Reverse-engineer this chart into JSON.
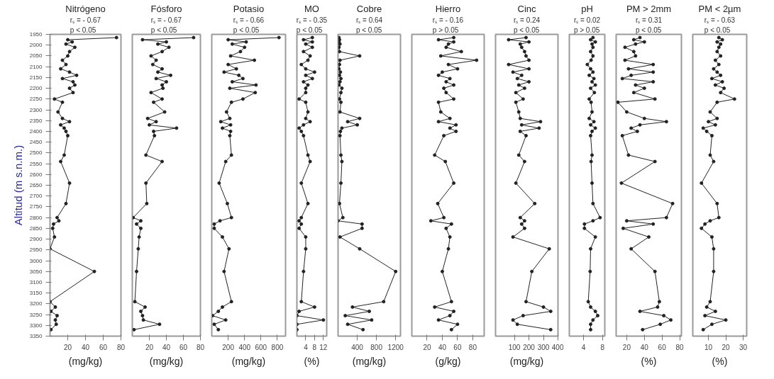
{
  "chart_data": [
    {
      "type": "line",
      "title": "Nitrógeno",
      "subtitle": "rₛ = - 0.67\np < 0.05",
      "xlabel": "(mg/kg)",
      "ylabel": "Altitud (m s.n.m.)",
      "orientation": "horizontal",
      "marker": "circle",
      "color": "#222222",
      "xlim": [
        0,
        80
      ],
      "xticks": [
        20,
        40,
        60,
        80
      ],
      "ylim": [
        3350,
        1950
      ],
      "yticks": [
        1950,
        2000,
        2050,
        2100,
        2150,
        2200,
        2250,
        2300,
        2350,
        2400,
        2450,
        2500,
        2550,
        2600,
        2650,
        2700,
        2750,
        2800,
        2850,
        2900,
        2950,
        3000,
        3050,
        3100,
        3150,
        3200,
        3250,
        3300,
        3350
      ],
      "x": [
        1965,
        1975,
        1985,
        1995,
        2010,
        2030,
        2050,
        2070,
        2090,
        2110,
        2125,
        2140,
        2155,
        2170,
        2185,
        2200,
        2220,
        2250,
        2265,
        2310,
        2340,
        2355,
        2370,
        2385,
        2400,
        2420,
        2510,
        2540,
        2640,
        2735,
        2800,
        2815,
        2830,
        2850,
        2890,
        2945,
        3050,
        3190,
        3215,
        3235,
        3255,
        3275,
        3295,
        3320
      ],
      "values": [
        75,
        20,
        25,
        18,
        28,
        22,
        20,
        14,
        18,
        12,
        22,
        30,
        14,
        26,
        28,
        22,
        26,
        5,
        14,
        9,
        14,
        22,
        12,
        16,
        18,
        20,
        16,
        12,
        22,
        18,
        8,
        10,
        4,
        3,
        5,
        0,
        50,
        0,
        6,
        1,
        8,
        6,
        7,
        1
      ]
    },
    {
      "type": "line",
      "title": "Fósforo",
      "subtitle": "rₛ = - 0.67\np < 0.05",
      "xlabel": "(mg/kg)",
      "orientation": "horizontal",
      "marker": "circle",
      "color": "#222222",
      "xlim": [
        0,
        80
      ],
      "xticks": [
        20,
        40,
        60,
        80
      ],
      "ylim": [
        3350,
        1950
      ],
      "tick_labels": "x",
      "x": [
        1965,
        1975,
        1985,
        1995,
        2010,
        2030,
        2050,
        2070,
        2090,
        2110,
        2125,
        2140,
        2155,
        2170,
        2185,
        2200,
        2220,
        2250,
        2265,
        2310,
        2340,
        2355,
        2370,
        2385,
        2400,
        2420,
        2510,
        2540,
        2640,
        2735,
        2800,
        2815,
        2830,
        2850,
        2890,
        2945,
        3050,
        3190,
        3215,
        3235,
        3255,
        3275,
        3295,
        3320
      ],
      "values": [
        72,
        12,
        40,
        30,
        43,
        35,
        22,
        28,
        24,
        35,
        30,
        45,
        28,
        40,
        35,
        36,
        22,
        35,
        25,
        38,
        18,
        28,
        20,
        52,
        25,
        26,
        16,
        35,
        16,
        17,
        1,
        10,
        5,
        10,
        8,
        7,
        5,
        3,
        15,
        10,
        12,
        13,
        32,
        2
      ]
    },
    {
      "type": "line",
      "title": "Potasio",
      "subtitle": "rₛ = - 0.66\np < 0.05",
      "xlabel": "(mg/kg)",
      "orientation": "horizontal",
      "marker": "circle",
      "color": "#222222",
      "xlim": [
        0,
        900
      ],
      "xticks": [
        200,
        400,
        600,
        800
      ],
      "ylim": [
        3350,
        1950
      ],
      "tick_labels": "x",
      "x": [
        1965,
        1975,
        1985,
        1995,
        2010,
        2030,
        2050,
        2070,
        2090,
        2110,
        2125,
        2140,
        2155,
        2170,
        2185,
        2200,
        2220,
        2250,
        2265,
        2310,
        2340,
        2355,
        2370,
        2385,
        2400,
        2420,
        2510,
        2540,
        2640,
        2735,
        2800,
        2815,
        2830,
        2850,
        2890,
        2945,
        3050,
        3190,
        3215,
        3235,
        3255,
        3275,
        3295,
        3320
      ],
      "values": [
        820,
        200,
        420,
        250,
        400,
        350,
        230,
        520,
        200,
        300,
        150,
        330,
        380,
        250,
        540,
        220,
        530,
        380,
        240,
        180,
        220,
        110,
        230,
        130,
        230,
        220,
        240,
        170,
        90,
        190,
        240,
        100,
        30,
        30,
        130,
        210,
        150,
        240,
        130,
        80,
        10,
        170,
        30,
        80
      ]
    },
    {
      "type": "line",
      "title": "MO",
      "subtitle": "rₛ = - 0.35\np < 0.05",
      "xlabel": "(%)",
      "orientation": "horizontal",
      "marker": "circle",
      "color": "#222222",
      "xlim": [
        0,
        13.5
      ],
      "xticks": [
        4,
        8,
        12
      ],
      "ylim": [
        3350,
        1950
      ],
      "tick_labels": "x",
      "x": [
        1965,
        1975,
        1985,
        1995,
        2010,
        2030,
        2050,
        2070,
        2090,
        2110,
        2125,
        2140,
        2155,
        2170,
        2185,
        2200,
        2220,
        2250,
        2265,
        2310,
        2340,
        2355,
        2370,
        2385,
        2400,
        2420,
        2510,
        2540,
        2640,
        2735,
        2800,
        2815,
        2830,
        2850,
        2890,
        2945,
        3050,
        3190,
        3215,
        3235,
        3255,
        3275,
        3295,
        3320
      ],
      "values": [
        7,
        3,
        7,
        4,
        7,
        3,
        6,
        5,
        2,
        4,
        8,
        4,
        7,
        3,
        5,
        4,
        4,
        1,
        4,
        5,
        4,
        6,
        3,
        1,
        2,
        3,
        5,
        6,
        2,
        5,
        2,
        1,
        2,
        1,
        4,
        4,
        3,
        2,
        8,
        1,
        0,
        12,
        0,
        0
      ]
    },
    {
      "type": "line",
      "title": "Cobre",
      "subtitle": "rₛ = 0.64\np < 0.05",
      "xlabel": "(mg/kg)",
      "orientation": "horizontal",
      "marker": "circle",
      "color": "#222222",
      "xlim": [
        0,
        1300
      ],
      "xticks": [
        400,
        800,
        1200
      ],
      "ylim": [
        3350,
        1950
      ],
      "tick_labels": "x",
      "x": [
        1965,
        1975,
        1985,
        1995,
        2010,
        2030,
        2050,
        2070,
        2090,
        2110,
        2125,
        2140,
        2155,
        2170,
        2185,
        2200,
        2220,
        2250,
        2265,
        2310,
        2340,
        2355,
        2370,
        2385,
        2400,
        2420,
        2510,
        2540,
        2640,
        2735,
        2800,
        2815,
        2830,
        2850,
        2890,
        2945,
        3050,
        3190,
        3215,
        3235,
        3255,
        3275,
        3295,
        3320
      ],
      "values": [
        20,
        30,
        20,
        40,
        20,
        30,
        450,
        40,
        30,
        20,
        50,
        30,
        60,
        40,
        20,
        80,
        60,
        30,
        60,
        40,
        450,
        200,
        400,
        80,
        50,
        40,
        60,
        80,
        60,
        30,
        100,
        0,
        500,
        500,
        40,
        450,
        1200,
        950,
        300,
        650,
        150,
        700,
        200,
        520
      ]
    },
    {
      "type": "line",
      "title": "Hierro",
      "subtitle": "rₛ = - 0.16\np > 0.05",
      "xlabel": "(g/kg)",
      "orientation": "horizontal",
      "marker": "circle",
      "color": "#222222",
      "xlim": [
        0,
        95
      ],
      "xticks": [
        20,
        40,
        60,
        80
      ],
      "ylim": [
        3350,
        1950
      ],
      "tick_labels": "x",
      "x": [
        1965,
        1975,
        1985,
        1995,
        2010,
        2030,
        2050,
        2070,
        2090,
        2110,
        2125,
        2140,
        2155,
        2170,
        2185,
        2200,
        2220,
        2250,
        2265,
        2310,
        2340,
        2355,
        2370,
        2385,
        2400,
        2420,
        2510,
        2540,
        2640,
        2735,
        2800,
        2815,
        2830,
        2850,
        2890,
        2945,
        3050,
        3190,
        3215,
        3235,
        3255,
        3275,
        3295,
        3320
      ],
      "values": [
        55,
        35,
        55,
        48,
        45,
        65,
        38,
        85,
        48,
        60,
        40,
        35,
        50,
        45,
        55,
        42,
        45,
        55,
        35,
        38,
        50,
        35,
        58,
        50,
        58,
        42,
        30,
        44,
        55,
        34,
        42,
        25,
        52,
        45,
        50,
        48,
        40,
        52,
        30,
        55,
        50,
        35,
        60,
        52
      ]
    },
    {
      "type": "line",
      "title": "Cinc",
      "subtitle": "rₛ = 0.24\np < 0.05",
      "xlabel": "(mg/kg)",
      "orientation": "horizontal",
      "marker": "circle",
      "color": "#222222",
      "xlim": [
        -30,
        400
      ],
      "xticks": [
        100,
        200,
        300,
        400
      ],
      "ylim": [
        3350,
        1950
      ],
      "tick_labels": "x",
      "x": [
        1965,
        1975,
        1985,
        1995,
        2010,
        2030,
        2050,
        2070,
        2090,
        2110,
        2125,
        2140,
        2155,
        2170,
        2185,
        2200,
        2220,
        2250,
        2265,
        2310,
        2340,
        2355,
        2370,
        2385,
        2400,
        2420,
        2510,
        2540,
        2640,
        2735,
        2800,
        2815,
        2830,
        2850,
        2890,
        2945,
        3050,
        3190,
        3215,
        3235,
        3255,
        3275,
        3295,
        3320
      ],
      "values": [
        180,
        60,
        200,
        140,
        150,
        170,
        180,
        200,
        60,
        200,
        90,
        150,
        120,
        200,
        130,
        170,
        110,
        160,
        110,
        130,
        140,
        280,
        150,
        270,
        140,
        180,
        130,
        170,
        110,
        240,
        140,
        170,
        150,
        170,
        90,
        340,
        220,
        180,
        300,
        350,
        160,
        90,
        120,
        350
      ]
    },
    {
      "type": "line",
      "title": "pH",
      "subtitle": "rₛ = 0.02\np > 0.05",
      "orientation": "horizontal",
      "marker": "circle",
      "color": "#222222",
      "xlim": [
        1,
        8.5
      ],
      "xticks": [
        4,
        8
      ],
      "ylim": [
        3350,
        1950
      ],
      "tick_labels": "x",
      "x": [
        1965,
        1975,
        1985,
        1995,
        2010,
        2030,
        2050,
        2070,
        2090,
        2110,
        2125,
        2140,
        2155,
        2170,
        2185,
        2200,
        2220,
        2250,
        2265,
        2310,
        2340,
        2355,
        2370,
        2385,
        2400,
        2420,
        2510,
        2540,
        2640,
        2735,
        2800,
        2815,
        2830,
        2850,
        2890,
        2945,
        3050,
        3190,
        3215,
        3235,
        3255,
        3275,
        3295,
        3320
      ],
      "values": [
        6,
        5.5,
        6.5,
        5.8,
        6,
        5.5,
        6,
        5.6,
        4.8,
        5.5,
        6,
        5.2,
        6.2,
        5.8,
        6.5,
        5.5,
        6.3,
        5.2,
        5.6,
        5.8,
        5.2,
        6.2,
        5.5,
        6.5,
        5.8,
        5.5,
        5.8,
        5.6,
        5.8,
        6,
        7.5,
        6,
        4.2,
        4.2,
        6.5,
        5.5,
        5.4,
        5,
        5.5,
        6.5,
        7,
        6,
        5.5,
        5.5
      ]
    },
    {
      "type": "line",
      "title": "PM > 2mm",
      "subtitle": "rₛ = 0.31\np < 0.05",
      "xlabel": "(%)",
      "orientation": "horizontal",
      "marker": "circle",
      "color": "#222222",
      "xlim": [
        8,
        82
      ],
      "xticks": [
        20,
        40,
        60,
        80
      ],
      "ylim": [
        3350,
        1950
      ],
      "tick_labels": "x",
      "x": [
        1965,
        1975,
        1985,
        1995,
        2010,
        2030,
        2050,
        2070,
        2090,
        2110,
        2125,
        2140,
        2155,
        2170,
        2185,
        2200,
        2220,
        2250,
        2265,
        2310,
        2340,
        2355,
        2370,
        2385,
        2400,
        2420,
        2510,
        2540,
        2640,
        2735,
        2800,
        2815,
        2830,
        2850,
        2890,
        2945,
        3050,
        3190,
        3215,
        3235,
        3255,
        3275,
        3295,
        3320
      ],
      "values": [
        35,
        28,
        40,
        30,
        18,
        28,
        30,
        18,
        50,
        22,
        50,
        25,
        15,
        50,
        30,
        40,
        28,
        52,
        10,
        20,
        40,
        65,
        35,
        25,
        32,
        15,
        22,
        52,
        14,
        72,
        65,
        20,
        50,
        16,
        45,
        25,
        52,
        57,
        55,
        35,
        62,
        70,
        58,
        38
      ]
    },
    {
      "type": "line",
      "title": "PM < 2µm",
      "subtitle": "rₛ = - 0.63\np < 0.05",
      "xlabel": "(%)",
      "orientation": "horizontal",
      "marker": "circle",
      "color": "#222222",
      "xlim": [
        1,
        32
      ],
      "xticks": [
        10,
        20,
        30
      ],
      "ylim": [
        3350,
        1950
      ],
      "tick_labels": "x",
      "x": [
        1965,
        1975,
        1985,
        1995,
        2010,
        2030,
        2050,
        2070,
        2090,
        2110,
        2125,
        2140,
        2155,
        2170,
        2185,
        2200,
        2220,
        2250,
        2265,
        2310,
        2340,
        2355,
        2370,
        2385,
        2400,
        2420,
        2510,
        2540,
        2640,
        2735,
        2800,
        2815,
        2830,
        2850,
        2890,
        2945,
        3050,
        3190,
        3215,
        3235,
        3255,
        3275,
        3295,
        3320
      ],
      "values": [
        16,
        18,
        15,
        17,
        16,
        15,
        17,
        14,
        16,
        13,
        15,
        17,
        12,
        18,
        14,
        19,
        17,
        25,
        15,
        11,
        15,
        10,
        14,
        7,
        9,
        12,
        11,
        13,
        6,
        15,
        16,
        11,
        8,
        6,
        12,
        13,
        13,
        11,
        9,
        14,
        8,
        20,
        12,
        7
      ]
    }
  ]
}
